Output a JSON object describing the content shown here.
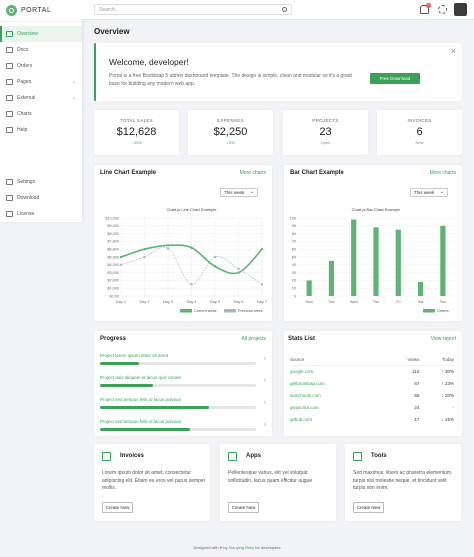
{
  "app": {
    "name": "PORTAL"
  },
  "sidebar": {
    "items": [
      {
        "label": "Overview",
        "icon": "house-icon",
        "active": true
      },
      {
        "label": "Docs",
        "icon": "folder-icon"
      },
      {
        "label": "Orders",
        "icon": "card-icon"
      },
      {
        "label": "Pages",
        "icon": "columns-icon",
        "chevron": true
      },
      {
        "label": "External",
        "icon": "grid-icon",
        "chevron": true
      },
      {
        "label": "Charts",
        "icon": "chart-icon"
      },
      {
        "label": "Help",
        "icon": "question-icon"
      }
    ],
    "bottom": [
      {
        "label": "Settings",
        "icon": "gear-icon"
      },
      {
        "label": "Download",
        "icon": "download-icon"
      },
      {
        "label": "License",
        "icon": "file-icon"
      }
    ]
  },
  "topbar": {
    "search_placeholder": "Search...",
    "notifications": "1"
  },
  "page": {
    "title": "Overview"
  },
  "welcome": {
    "title": "Welcome, developer!",
    "text": "Portal is a free Bootstrap 5 admin dashboard template. The design is simple, clean and modular so it's a great base for building any modern web app.",
    "button": "Free Download",
    "close": "×"
  },
  "stats": [
    {
      "label": "TOTAL SALES",
      "value": "$12,628",
      "sub": "↑ 20%",
      "tone": "green"
    },
    {
      "label": "EXPENSES",
      "value": "$2,250",
      "sub": "↓ 5%",
      "tone": "green"
    },
    {
      "label": "PROJECTS",
      "value": "23",
      "sub": "Open",
      "tone": "grey"
    },
    {
      "label": "INVOICES",
      "value": "6",
      "sub": "New",
      "tone": "grey"
    }
  ],
  "line_card": {
    "title": "Line Chart Example",
    "more": "More charts",
    "select": "This week"
  },
  "bar_card": {
    "title": "Bar Chart Example",
    "more": "More charts",
    "select": "This week"
  },
  "chart_data": [
    {
      "type": "line",
      "title": "Chart.js Line Chart Example",
      "categories": [
        "Day 1",
        "Day 2",
        "Day 3",
        "Day 4",
        "Day 5",
        "Day 6",
        "Day 7"
      ],
      "series": [
        {
          "name": "Current week",
          "values": [
            5000,
            6000,
            6500,
            6200,
            3800,
            3000,
            6000
          ],
          "color": "#5fb377"
        },
        {
          "name": "Previous week",
          "values": [
            4000,
            5000,
            6100,
            1500,
            5000,
            3500,
            1500
          ],
          "color": "#a9b5c9"
        }
      ],
      "y_ticks": [
        "$0.00",
        "$1,000",
        "$2,000",
        "$3,000",
        "$4,000",
        "$5,000",
        "$6,000",
        "$7,000",
        "$8,000",
        "$9,000",
        "$10,000"
      ],
      "ylim": [
        0,
        10000
      ],
      "legend": "bottom-right"
    },
    {
      "type": "bar",
      "title": "Chart.js Bar Chart Example",
      "categories": [
        "Mon",
        "Tue",
        "Wed",
        "Thu",
        "Fri",
        "Sat",
        "Sun"
      ],
      "series": [
        {
          "name": "Orders",
          "values": [
            20,
            45,
            98,
            88,
            85,
            18,
            90
          ],
          "color": "#5fb377"
        }
      ],
      "y_ticks": [
        "0",
        "10",
        "20",
        "30",
        "40",
        "50",
        "60",
        "70",
        "80",
        "90",
        "100"
      ],
      "ylim": [
        0,
        100
      ],
      "legend": "bottom-right"
    }
  ],
  "progress": {
    "title": "Progress",
    "more": "All projects",
    "items": [
      {
        "label": "Project lorem ipsum dolor sit amet",
        "pct": 0.25
      },
      {
        "label": "Project duis aliquam et lacus quis ornare",
        "pct": 0.34
      },
      {
        "label": "Project sed tempus felis id lacus pulvinar",
        "pct": 0.7
      },
      {
        "label": "Project sed tempus felis id lacus pulvinar",
        "pct": 0.58
      }
    ]
  },
  "stats_list": {
    "title": "Stats List",
    "more": "View report",
    "headers": [
      "Source",
      "Views",
      "Today"
    ],
    "rows": [
      {
        "source": "google.com",
        "views": "110",
        "today": "↑ 30%",
        "dir": "up"
      },
      {
        "source": "getbootstrap.com",
        "views": "67",
        "today": "↑ 23%",
        "dir": "up"
      },
      {
        "source": "w3schools.com",
        "views": "56",
        "today": "↓ 20%",
        "dir": "down"
      },
      {
        "source": "javascript.com",
        "views": "24",
        "today": "-",
        "dir": "none"
      },
      {
        "source": "github.com",
        "views": "17",
        "today": "↓ 15%",
        "dir": "down"
      }
    ]
  },
  "features": [
    {
      "title": "Invoices",
      "icon": "receipt-icon",
      "text": "Lorem ipsum dolor sit amet, consectetur adipiscing elit. Etiam eu eros vel purus semper mollis.",
      "button": "Create New"
    },
    {
      "title": "Apps",
      "icon": "code-icon",
      "text": "Pellentesque varius, elit vel volutpat sollicitudin, lacus quam efficitur augue",
      "button": "Create New"
    },
    {
      "title": "Tools",
      "icon": "tools-icon",
      "text": "Sed maximus, libero ac pharetra elementum, turpis nisi molestie neque, et tincidunt velit turpis non enim.",
      "button": "Create New"
    }
  ],
  "footer": {
    "pre": "Designed with",
    "heart": "♥",
    "by": "by",
    "author": "Xiaoying Riley",
    "post": "for developers"
  }
}
